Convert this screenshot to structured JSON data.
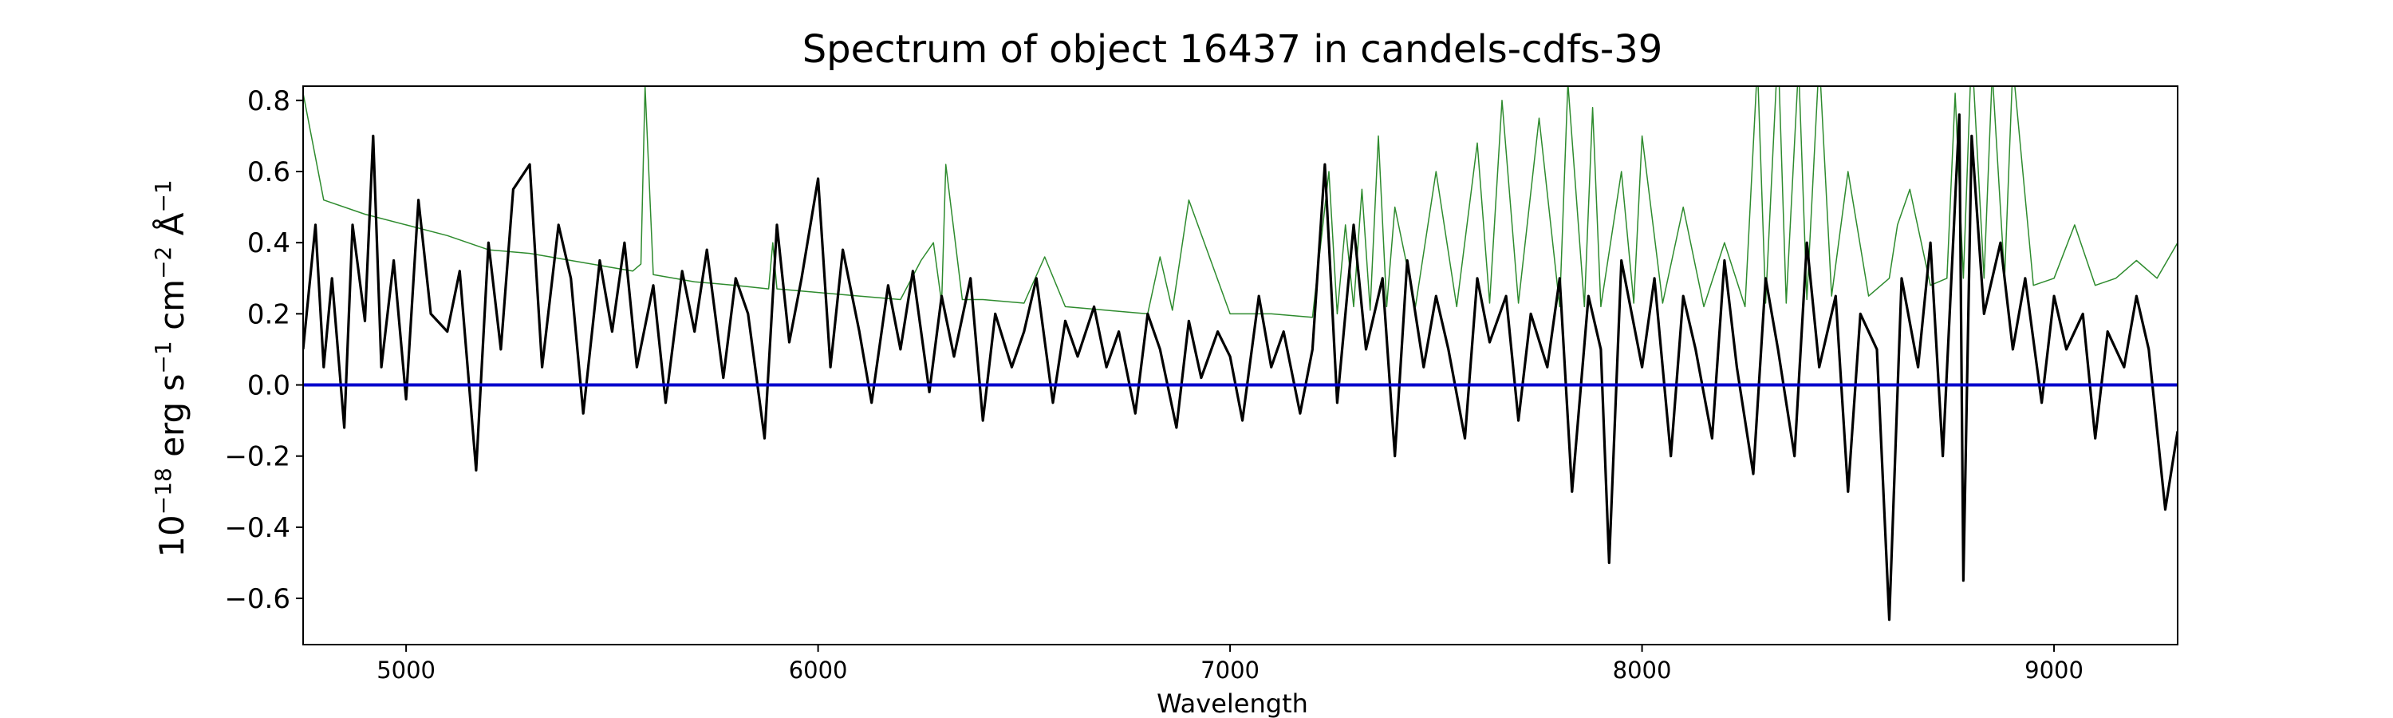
{
  "chart_data": {
    "type": "line",
    "title": "Spectrum of object 16437 in candels-cdfs-39",
    "xlabel": "Wavelength",
    "ylabel": {
      "parts": [
        {
          "t": "10",
          "sup": false
        },
        {
          "t": "−18",
          "sup": true
        },
        {
          "t": " erg s",
          "sup": false
        },
        {
          "t": "−1",
          "sup": true
        },
        {
          "t": " cm",
          "sup": false
        },
        {
          "t": "−2",
          "sup": true
        },
        {
          "t": " Å",
          "sup": false
        },
        {
          "t": "−1",
          "sup": true
        }
      ]
    },
    "xlim": [
      4750,
      9300
    ],
    "ylim": [
      -0.73,
      0.84
    ],
    "xticks": [
      {
        "value": 5000,
        "label": "5000"
      },
      {
        "value": 6000,
        "label": "6000"
      },
      {
        "value": 7000,
        "label": "7000"
      },
      {
        "value": 8000,
        "label": "8000"
      },
      {
        "value": 9000,
        "label": "9000"
      }
    ],
    "yticks": [
      {
        "value": -0.6,
        "label": "−0.6"
      },
      {
        "value": -0.4,
        "label": "−0.4"
      },
      {
        "value": -0.2,
        "label": "−0.2"
      },
      {
        "value": 0.0,
        "label": "0.0"
      },
      {
        "value": 0.2,
        "label": "0.2"
      },
      {
        "value": 0.4,
        "label": "0.4"
      },
      {
        "value": 0.6,
        "label": "0.6"
      },
      {
        "value": 0.8,
        "label": "0.8"
      }
    ],
    "grid": false,
    "series": [
      {
        "role": "error",
        "color": "#2e8b2e",
        "x": [
          4750,
          4800,
          4900,
          5000,
          5100,
          5200,
          5300,
          5400,
          5500,
          5550,
          5570,
          5580,
          5600,
          5700,
          5800,
          5880,
          5890,
          5900,
          6000,
          6100,
          6200,
          6250,
          6280,
          6300,
          6310,
          6350,
          6400,
          6500,
          6550,
          6600,
          6700,
          6800,
          6830,
          6860,
          6900,
          7000,
          7100,
          7200,
          7240,
          7260,
          7280,
          7300,
          7320,
          7340,
          7360,
          7380,
          7400,
          7450,
          7500,
          7550,
          7600,
          7630,
          7660,
          7700,
          7750,
          7800,
          7820,
          7860,
          7880,
          7900,
          7950,
          7980,
          8000,
          8050,
          8100,
          8150,
          8200,
          8250,
          8280,
          8300,
          8330,
          8350,
          8380,
          8400,
          8430,
          8460,
          8500,
          8550,
          8600,
          8620,
          8650,
          8700,
          8740,
          8760,
          8780,
          8800,
          8830,
          8850,
          8880,
          8900,
          8950,
          9000,
          9050,
          9100,
          9150,
          9200,
          9250,
          9300
        ],
        "y": [
          0.82,
          0.52,
          0.48,
          0.45,
          0.42,
          0.38,
          0.37,
          0.35,
          0.33,
          0.32,
          0.34,
          0.84,
          0.31,
          0.29,
          0.28,
          0.27,
          0.4,
          0.27,
          0.26,
          0.25,
          0.24,
          0.35,
          0.4,
          0.23,
          0.62,
          0.24,
          0.24,
          0.23,
          0.36,
          0.22,
          0.21,
          0.2,
          0.36,
          0.21,
          0.52,
          0.2,
          0.2,
          0.19,
          0.6,
          0.2,
          0.45,
          0.22,
          0.55,
          0.21,
          0.7,
          0.22,
          0.5,
          0.22,
          0.6,
          0.22,
          0.68,
          0.23,
          0.8,
          0.23,
          0.75,
          0.22,
          0.85,
          0.22,
          0.78,
          0.22,
          0.6,
          0.23,
          0.7,
          0.23,
          0.5,
          0.22,
          0.4,
          0.22,
          0.9,
          0.23,
          0.95,
          0.23,
          0.9,
          0.24,
          0.92,
          0.25,
          0.6,
          0.25,
          0.3,
          0.45,
          0.55,
          0.28,
          0.3,
          0.82,
          0.3,
          0.95,
          0.3,
          0.88,
          0.3,
          0.9,
          0.28,
          0.3,
          0.45,
          0.28,
          0.3,
          0.35,
          0.3,
          0.4
        ]
      },
      {
        "role": "flux",
        "color": "#000000",
        "x": [
          4750,
          4780,
          4800,
          4820,
          4850,
          4870,
          4900,
          4920,
          4940,
          4970,
          5000,
          5030,
          5060,
          5100,
          5130,
          5170,
          5200,
          5230,
          5260,
          5300,
          5330,
          5370,
          5400,
          5430,
          5470,
          5500,
          5530,
          5560,
          5600,
          5630,
          5670,
          5700,
          5730,
          5770,
          5800,
          5830,
          5870,
          5900,
          5930,
          5960,
          6000,
          6030,
          6060,
          6100,
          6130,
          6170,
          6200,
          6230,
          6270,
          6300,
          6330,
          6370,
          6400,
          6430,
          6470,
          6500,
          6530,
          6570,
          6600,
          6630,
          6670,
          6700,
          6730,
          6770,
          6800,
          6830,
          6870,
          6900,
          6930,
          6970,
          7000,
          7030,
          7070,
          7100,
          7130,
          7170,
          7200,
          7230,
          7260,
          7300,
          7330,
          7370,
          7400,
          7430,
          7470,
          7500,
          7530,
          7570,
          7600,
          7630,
          7670,
          7700,
          7730,
          7770,
          7800,
          7830,
          7870,
          7900,
          7920,
          7950,
          8000,
          8030,
          8070,
          8100,
          8130,
          8170,
          8200,
          8230,
          8270,
          8300,
          8330,
          8370,
          8400,
          8430,
          8470,
          8500,
          8530,
          8570,
          8600,
          8630,
          8670,
          8700,
          8730,
          8770,
          8780,
          8800,
          8830,
          8870,
          8900,
          8930,
          8970,
          9000,
          9030,
          9070,
          9100,
          9130,
          9170,
          9200,
          9230,
          9270,
          9300
        ],
        "y": [
          0.1,
          0.45,
          0.05,
          0.3,
          -0.12,
          0.45,
          0.18,
          0.7,
          0.05,
          0.35,
          -0.04,
          0.52,
          0.2,
          0.15,
          0.32,
          -0.24,
          0.4,
          0.1,
          0.55,
          0.62,
          0.05,
          0.45,
          0.3,
          -0.08,
          0.35,
          0.15,
          0.4,
          0.05,
          0.28,
          -0.05,
          0.32,
          0.15,
          0.38,
          0.02,
          0.3,
          0.2,
          -0.15,
          0.45,
          0.12,
          0.3,
          0.58,
          0.05,
          0.38,
          0.15,
          -0.05,
          0.28,
          0.1,
          0.32,
          -0.02,
          0.25,
          0.08,
          0.3,
          -0.1,
          0.2,
          0.05,
          0.15,
          0.3,
          -0.05,
          0.18,
          0.08,
          0.22,
          0.05,
          0.15,
          -0.08,
          0.2,
          0.1,
          -0.12,
          0.18,
          0.02,
          0.15,
          0.08,
          -0.1,
          0.25,
          0.05,
          0.15,
          -0.08,
          0.1,
          0.62,
          -0.05,
          0.45,
          0.1,
          0.3,
          -0.2,
          0.35,
          0.05,
          0.25,
          0.1,
          -0.15,
          0.3,
          0.12,
          0.25,
          -0.1,
          0.2,
          0.05,
          0.3,
          -0.3,
          0.25,
          0.1,
          -0.5,
          0.35,
          0.05,
          0.3,
          -0.2,
          0.25,
          0.1,
          -0.15,
          0.35,
          0.05,
          -0.25,
          0.3,
          0.1,
          -0.2,
          0.4,
          0.05,
          0.25,
          -0.3,
          0.2,
          0.1,
          -0.66,
          0.3,
          0.05,
          0.4,
          -0.2,
          0.76,
          -0.55,
          0.7,
          0.2,
          0.4,
          0.1,
          0.3,
          -0.05,
          0.25,
          0.1,
          0.2,
          -0.15,
          0.15,
          0.05,
          0.25,
          0.1,
          -0.35,
          -0.13
        ]
      },
      {
        "role": "zero",
        "color": "#0000cc",
        "x": [
          4750,
          9300
        ],
        "y": [
          0.0,
          0.0
        ]
      }
    ]
  }
}
